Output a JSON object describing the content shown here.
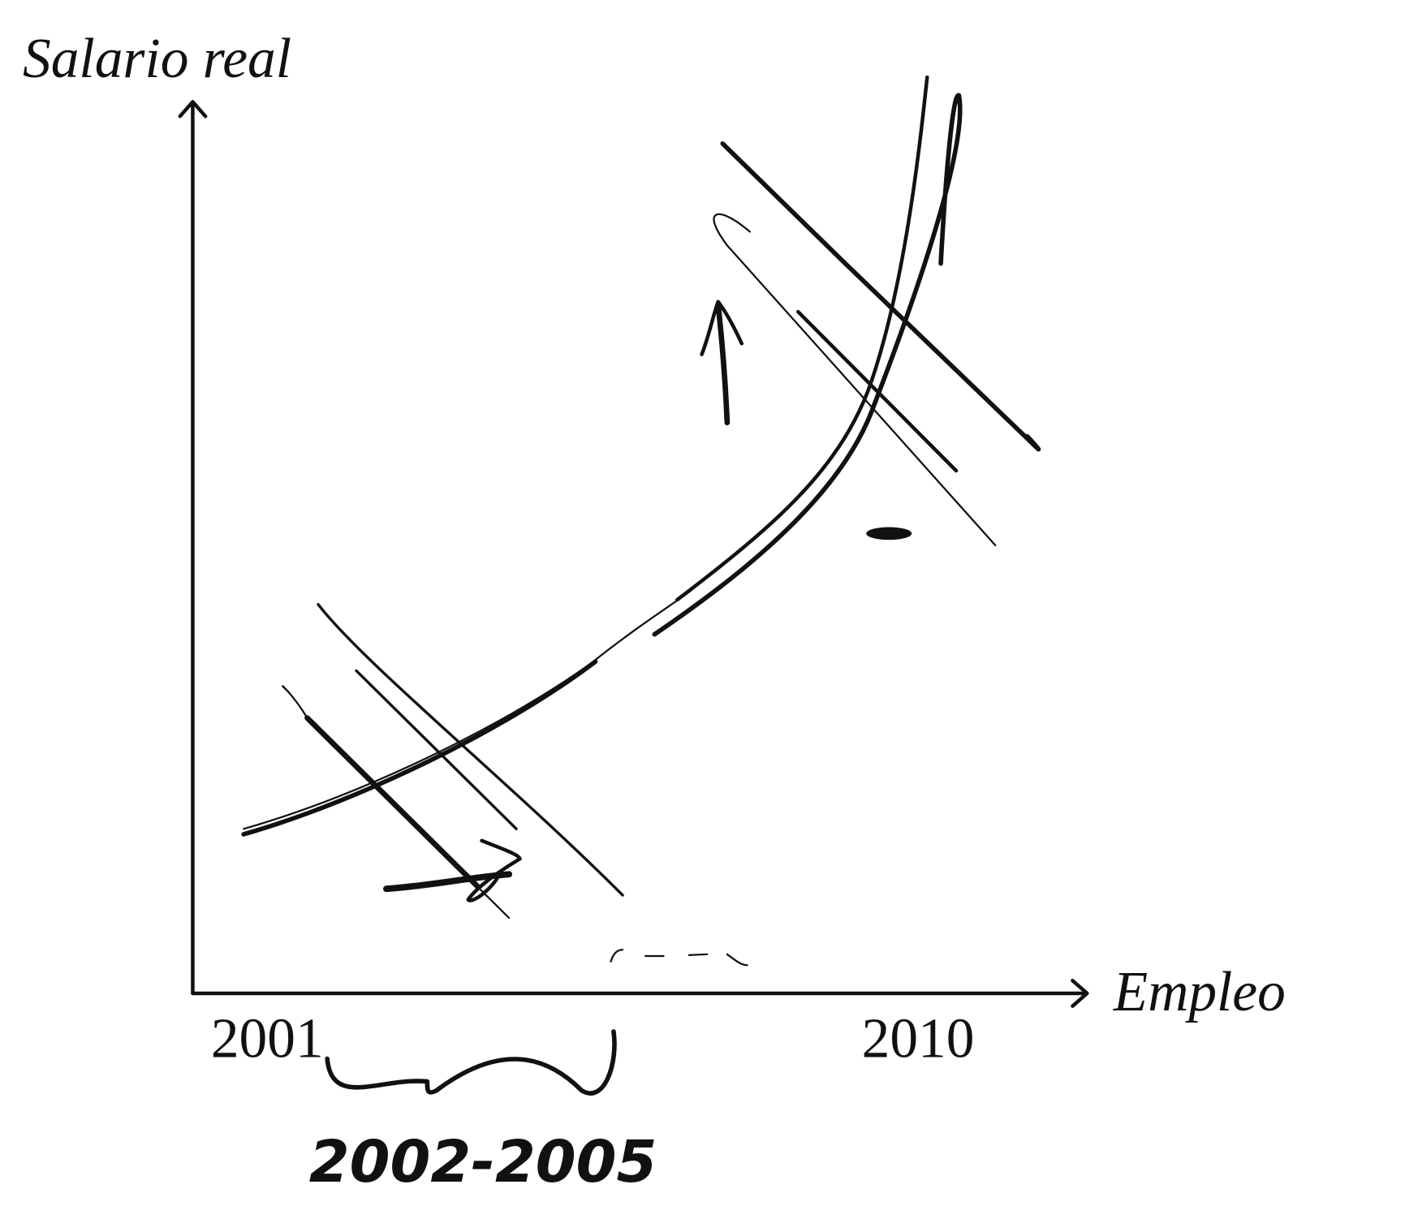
{
  "axes": {
    "y_label": "Salario real",
    "x_label": "Empleo"
  },
  "labels": {
    "start": "2001",
    "end": "2010",
    "handwritten": "2002-2005"
  }
}
